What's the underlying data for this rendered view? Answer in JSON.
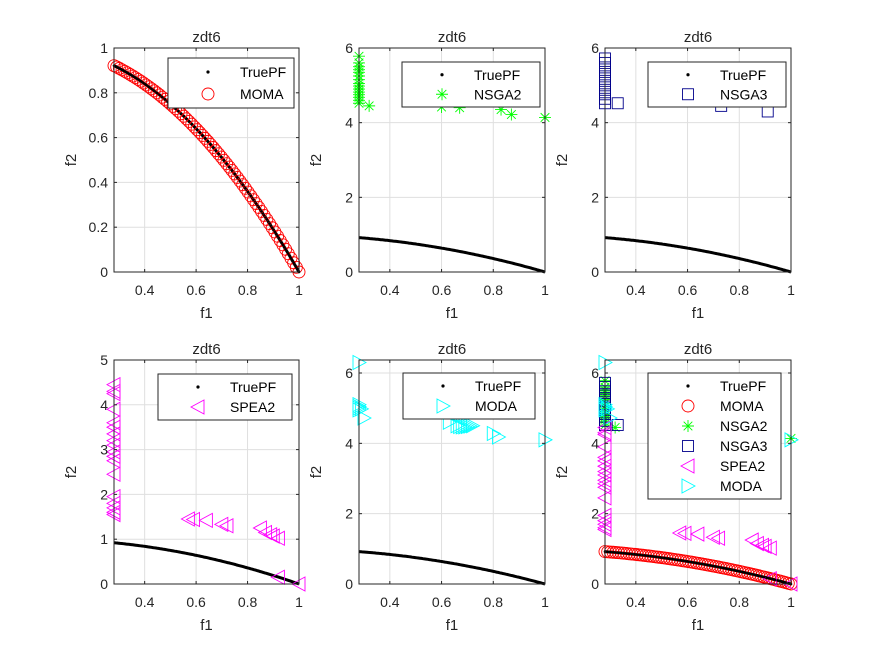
{
  "figure": {
    "layout": "2x3 grid of subplots",
    "background": "#ffffff"
  },
  "styles": {
    "TruePF": {
      "marker": "point",
      "color": "#000000"
    },
    "MOMA": {
      "marker": "circle",
      "color": "#ff0000"
    },
    "NSGA2": {
      "marker": "asterisk",
      "color": "#00ff00"
    },
    "NSGA3": {
      "marker": "square",
      "color": "#00008b"
    },
    "SPEA2": {
      "marker": "triangle-left",
      "color": "#ff00ff"
    },
    "MODA": {
      "marker": "triangle-right",
      "color": "#00ffff"
    }
  },
  "chart_data": [
    {
      "type": "scatter",
      "title": "zdt6",
      "xlabel": "f1",
      "ylabel": "f2",
      "xlim": [
        0.2808,
        1
      ],
      "ylim": [
        0,
        1
      ],
      "xticks": [
        0.4,
        0.6,
        0.8,
        1
      ],
      "xtick_labels": [
        "0.4",
        "0.6",
        "0.8",
        "1"
      ],
      "yticks": [
        0,
        0.2,
        0.4,
        0.6,
        0.8,
        1
      ],
      "ytick_labels": [
        "0",
        "0.2",
        "0.4",
        "0.6",
        "0.8",
        "1"
      ],
      "grid": true,
      "legend": {
        "position": "top-right",
        "entries": [
          "TruePF",
          "MOMA"
        ]
      },
      "series": [
        {
          "name": "TruePF",
          "generator": "true_pf"
        },
        {
          "name": "MOMA",
          "generator": "true_pf_dense"
        }
      ]
    },
    {
      "type": "scatter",
      "title": "zdt6",
      "xlabel": "f1",
      "ylabel": "f2",
      "xlim": [
        0.2808,
        1
      ],
      "ylim": [
        0,
        6
      ],
      "xticks": [
        0.4,
        0.6,
        0.8,
        1
      ],
      "xtick_labels": [
        "0.4",
        "0.6",
        "0.8",
        "1"
      ],
      "yticks": [
        0,
        2,
        4,
        6
      ],
      "ytick_labels": [
        "0",
        "2",
        "4",
        "6"
      ],
      "grid": true,
      "legend": {
        "position": "top-right",
        "entries": [
          "TruePF",
          "NSGA2"
        ]
      },
      "series": [
        {
          "name": "TruePF",
          "generator": "true_pf"
        },
        {
          "name": "NSGA2",
          "points": [
            [
              0.2808,
              5.78
            ],
            [
              0.2808,
              5.6
            ],
            [
              0.2808,
              5.5
            ],
            [
              0.2808,
              5.42
            ],
            [
              0.2808,
              5.35
            ],
            [
              0.2808,
              5.25
            ],
            [
              0.2808,
              5.15
            ],
            [
              0.2808,
              5.05
            ],
            [
              0.2808,
              4.98
            ],
            [
              0.2808,
              4.9
            ],
            [
              0.2808,
              4.82
            ],
            [
              0.2808,
              4.75
            ],
            [
              0.2808,
              4.68
            ],
            [
              0.2808,
              4.6
            ],
            [
              0.2808,
              4.52
            ],
            [
              0.32,
              4.45
            ],
            [
              0.6,
              4.42
            ],
            [
              0.67,
              4.4
            ],
            [
              0.83,
              4.35
            ],
            [
              0.87,
              4.22
            ],
            [
              1.0,
              4.14
            ]
          ]
        }
      ]
    },
    {
      "type": "scatter",
      "title": "zdt6",
      "xlabel": "f1",
      "ylabel": "f2",
      "xlim": [
        0.2808,
        1
      ],
      "ylim": [
        0,
        6
      ],
      "xticks": [
        0.4,
        0.6,
        0.8,
        1
      ],
      "xtick_labels": [
        "0.4",
        "0.6",
        "0.8",
        "1"
      ],
      "yticks": [
        0,
        2,
        4,
        6
      ],
      "ytick_labels": [
        "0",
        "2",
        "4",
        "6"
      ],
      "grid": true,
      "legend": {
        "position": "top-right",
        "entries": [
          "TruePF",
          "NSGA3"
        ]
      },
      "series": [
        {
          "name": "TruePF",
          "generator": "true_pf"
        },
        {
          "name": "NSGA3",
          "points": [
            [
              0.2808,
              5.72
            ],
            [
              0.2808,
              5.6
            ],
            [
              0.2808,
              5.48
            ],
            [
              0.2808,
              5.36
            ],
            [
              0.2808,
              5.24
            ],
            [
              0.2808,
              5.12
            ],
            [
              0.2808,
              5.0
            ],
            [
              0.2808,
              4.88
            ],
            [
              0.2808,
              4.76
            ],
            [
              0.2808,
              4.64
            ],
            [
              0.2808,
              4.52
            ],
            [
              0.33,
              4.52
            ],
            [
              0.73,
              4.45
            ],
            [
              0.91,
              4.3
            ]
          ]
        }
      ]
    },
    {
      "type": "scatter",
      "title": "zdt6",
      "xlabel": "f1",
      "ylabel": "f2",
      "xlim": [
        0.2808,
        1
      ],
      "ylim": [
        0,
        5
      ],
      "xticks": [
        0.4,
        0.6,
        0.8,
        1
      ],
      "xtick_labels": [
        "0.4",
        "0.6",
        "0.8",
        "1"
      ],
      "yticks": [
        0,
        1,
        2,
        3,
        4,
        5
      ],
      "ytick_labels": [
        "0",
        "1",
        "2",
        "3",
        "4",
        "5"
      ],
      "grid": true,
      "legend": {
        "position": "top-right",
        "entries": [
          "TruePF",
          "SPEA2"
        ]
      },
      "series": [
        {
          "name": "TruePF",
          "generator": "true_pf"
        },
        {
          "name": "SPEA2",
          "points": [
            [
              0.2808,
              4.45
            ],
            [
              0.2808,
              4.3
            ],
            [
              0.2808,
              4.25
            ],
            [
              0.2808,
              3.9
            ],
            [
              0.2808,
              3.6
            ],
            [
              0.2808,
              3.5
            ],
            [
              0.2808,
              3.35
            ],
            [
              0.2808,
              3.2
            ],
            [
              0.2808,
              3.1
            ],
            [
              0.2808,
              2.95
            ],
            [
              0.2808,
              2.85
            ],
            [
              0.2808,
              2.75
            ],
            [
              0.2808,
              2.45
            ],
            [
              0.2808,
              1.95
            ],
            [
              0.2808,
              1.8
            ],
            [
              0.2808,
              1.7
            ],
            [
              0.2808,
              1.6
            ],
            [
              0.2808,
              1.55
            ],
            [
              0.57,
              1.45
            ],
            [
              0.59,
              1.44
            ],
            [
              0.64,
              1.42
            ],
            [
              0.7,
              1.33
            ],
            [
              0.72,
              1.3
            ],
            [
              0.85,
              1.25
            ],
            [
              0.87,
              1.15
            ],
            [
              0.89,
              1.1
            ],
            [
              0.9,
              1.07
            ],
            [
              0.92,
              1.02
            ],
            [
              0.92,
              0.15
            ],
            [
              1.0,
              0.0
            ]
          ]
        }
      ]
    },
    {
      "type": "scatter",
      "title": "zdt6",
      "xlabel": "f1",
      "ylabel": "f2",
      "xlim": [
        0.2808,
        1
      ],
      "ylim": [
        0,
        6.37
      ],
      "xticks": [
        0.4,
        0.6,
        0.8,
        1
      ],
      "xtick_labels": [
        "0.4",
        "0.6",
        "0.8",
        "1"
      ],
      "yticks": [
        0,
        2,
        4,
        6
      ],
      "ytick_labels": [
        "0",
        "2",
        "4",
        "6"
      ],
      "grid": true,
      "legend": {
        "position": "top-right",
        "entries": [
          "TruePF",
          "MODA"
        ]
      },
      "series": [
        {
          "name": "TruePF",
          "generator": "true_pf"
        },
        {
          "name": "MODA",
          "points": [
            [
              0.2808,
              6.3
            ],
            [
              0.2808,
              5.1
            ],
            [
              0.2808,
              5.05
            ],
            [
              0.2808,
              5.0
            ],
            [
              0.29,
              4.98
            ],
            [
              0.2808,
              4.95
            ],
            [
              0.3,
              4.72
            ],
            [
              0.63,
              4.6
            ],
            [
              0.66,
              4.5
            ],
            [
              0.67,
              4.48
            ],
            [
              0.68,
              4.47
            ],
            [
              0.69,
              4.47
            ],
            [
              0.7,
              4.48
            ],
            [
              0.71,
              4.49
            ],
            [
              0.72,
              4.5
            ],
            [
              0.8,
              4.28
            ],
            [
              0.82,
              4.18
            ],
            [
              1.0,
              4.1
            ]
          ]
        }
      ]
    },
    {
      "type": "scatter",
      "title": "zdt6",
      "xlabel": "f1",
      "ylabel": "f2",
      "xlim": [
        0.2808,
        1
      ],
      "ylim": [
        0,
        6.37
      ],
      "xticks": [
        0.4,
        0.6,
        0.8,
        1
      ],
      "xtick_labels": [
        "0.4",
        "0.6",
        "0.8",
        "1"
      ],
      "yticks": [
        0,
        2,
        4,
        6
      ],
      "ytick_labels": [
        "0",
        "2",
        "4",
        "6"
      ],
      "grid": true,
      "legend": {
        "position": "top-right",
        "entries": [
          "TruePF",
          "MOMA",
          "NSGA2",
          "NSGA3",
          "SPEA2",
          "MODA"
        ]
      },
      "series": [
        {
          "name": "TruePF",
          "generator": "true_pf"
        },
        {
          "name": "MOMA",
          "generator": "true_pf_dense"
        },
        {
          "name": "NSGA2",
          "ref": 1
        },
        {
          "name": "NSGA3",
          "ref": 2
        },
        {
          "name": "SPEA2",
          "ref": 3
        },
        {
          "name": "MODA",
          "ref": 4
        }
      ]
    }
  ]
}
